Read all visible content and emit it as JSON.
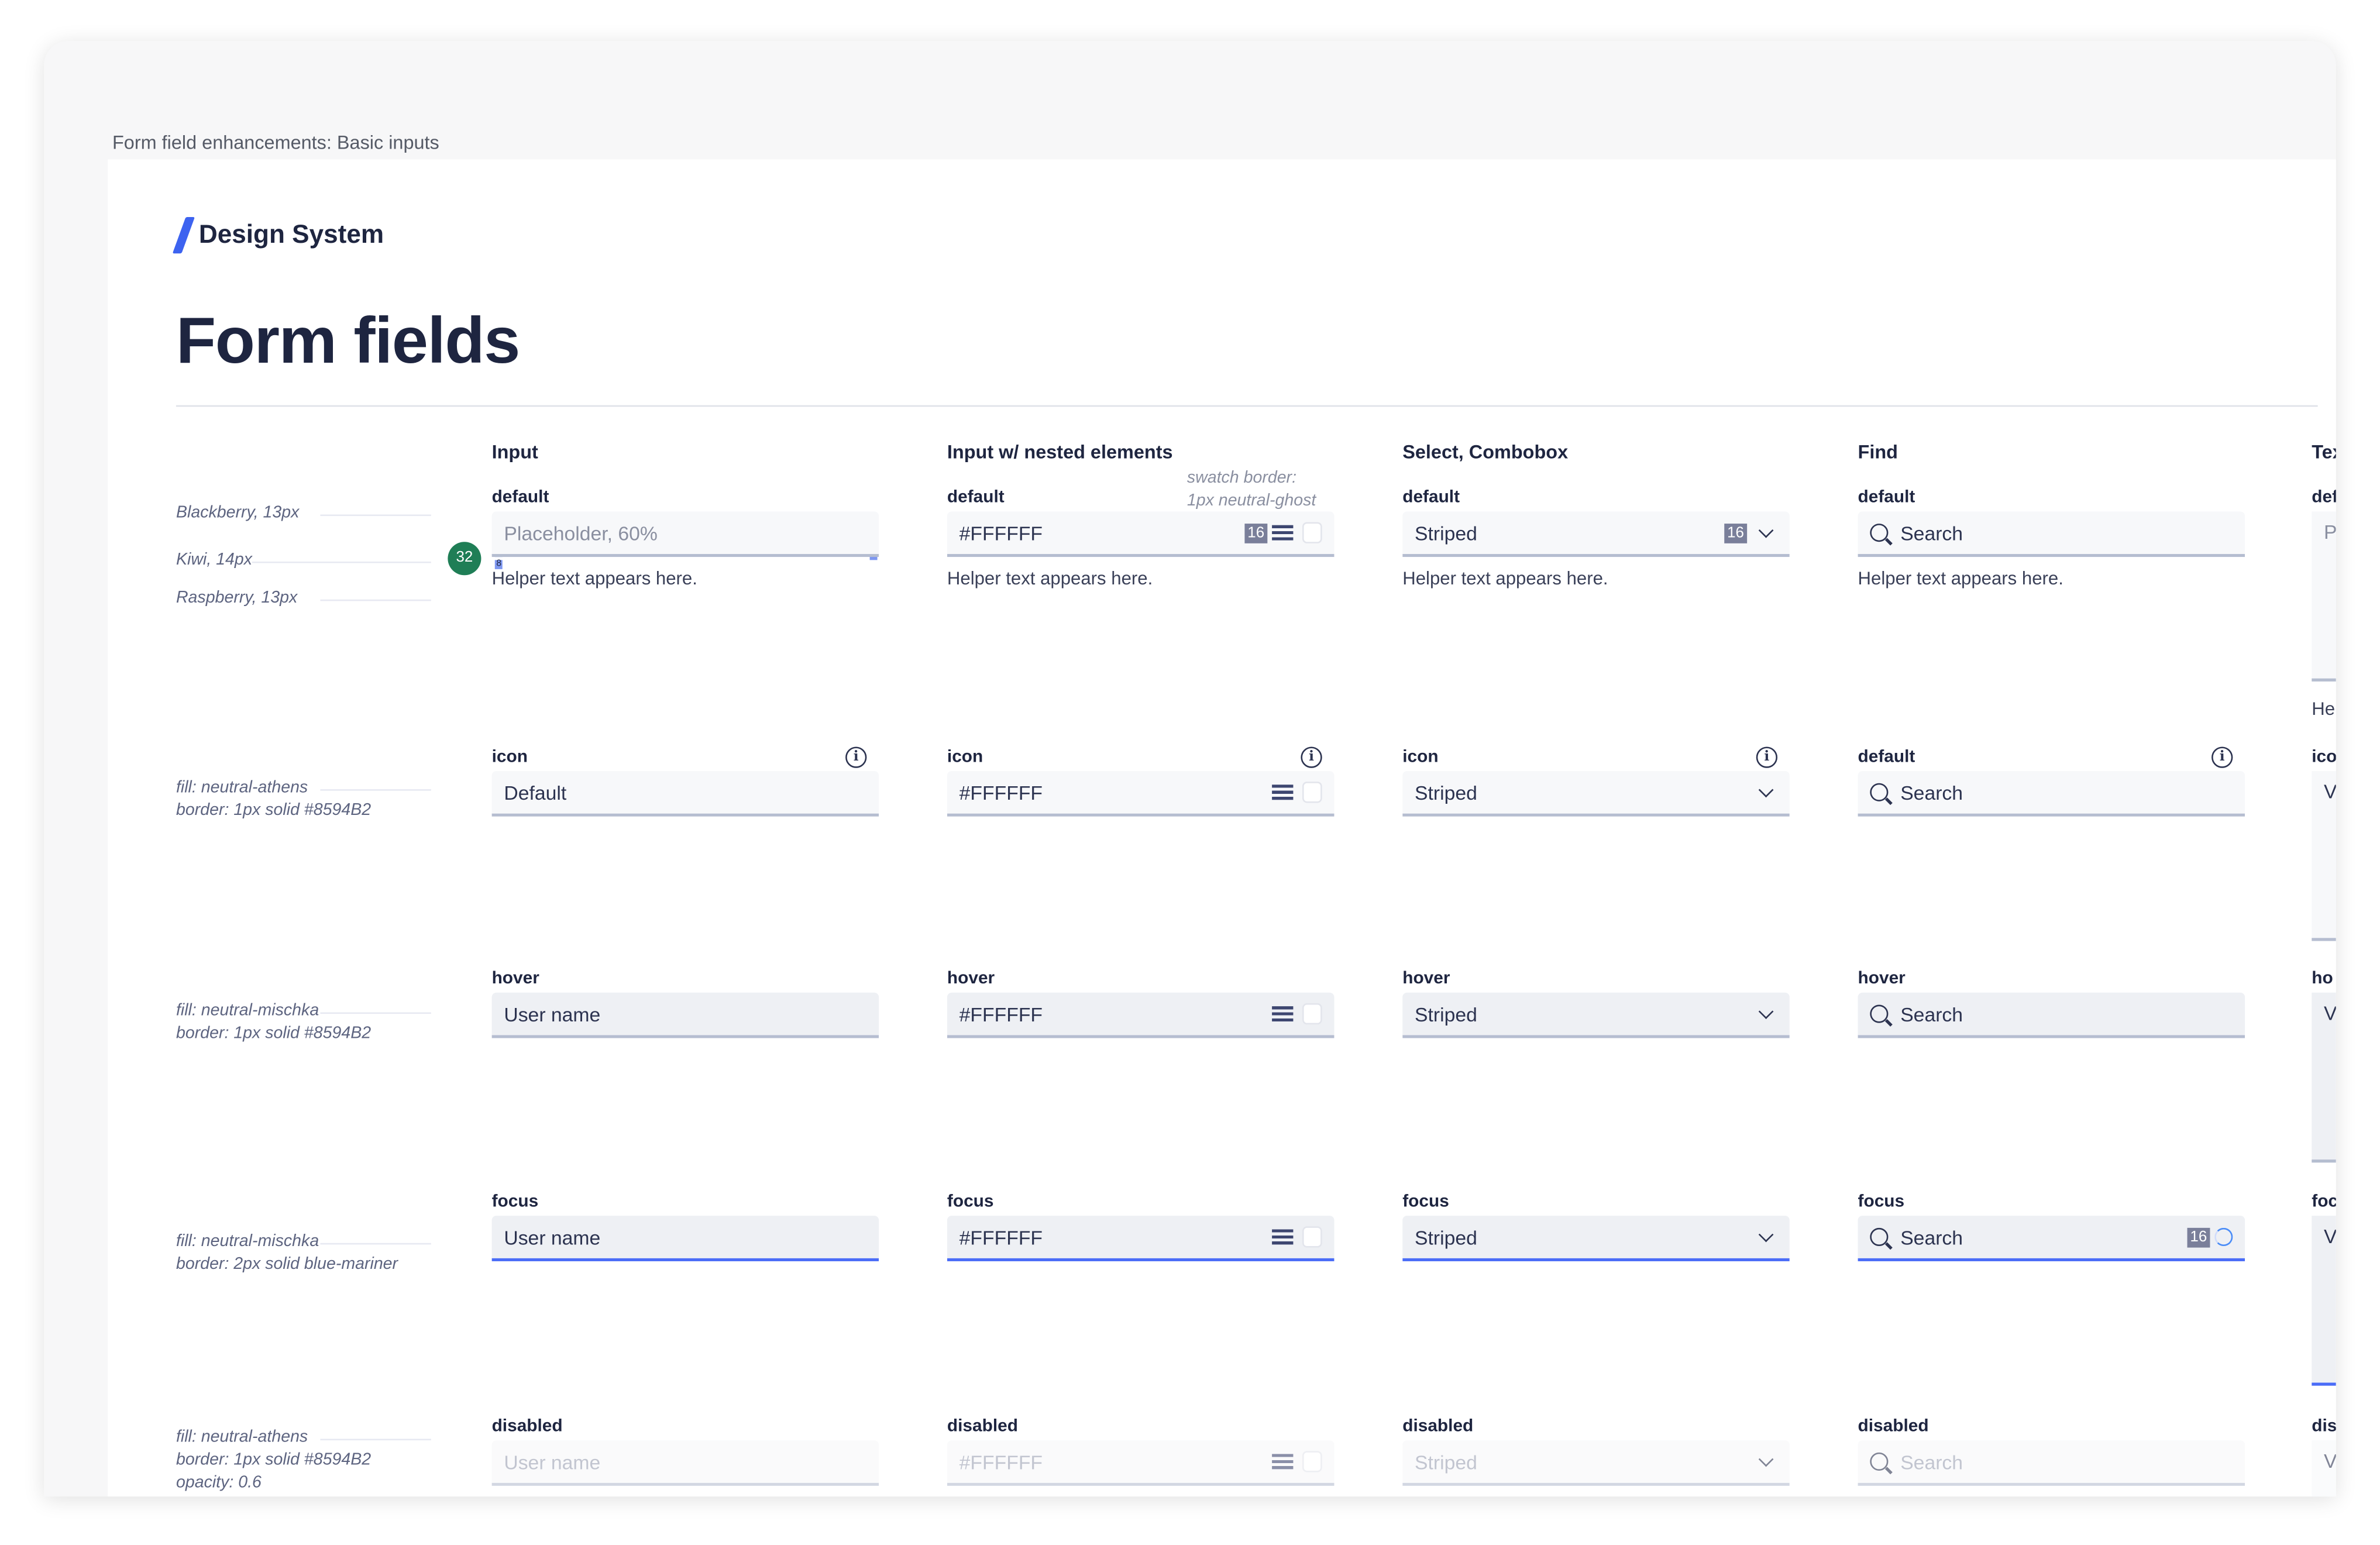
{
  "caption": "Form field enhancements: Basic inputs",
  "brand": "Design System",
  "page_title": "Form fields",
  "colors": {
    "accent": "#4A6CF7",
    "brand": "#3D63F0",
    "border": "#8594B2",
    "fill_default": "#F7F8FA",
    "fill_hover": "#EEF0F4",
    "pill": "#1F7E56"
  },
  "annotations": {
    "typography": [
      "Blackberry, 13px",
      "Kiwi, 14px",
      "Raspberry, 13px"
    ],
    "height_pill": "32",
    "spacing_mark": "8",
    "rows": [
      [
        "fill: neutral-athens",
        "border: 1px solid #8594B2"
      ],
      [
        "fill: neutral-mischka",
        "border: 1px solid #8594B2"
      ],
      [
        "fill: neutral-mischka",
        "border: 2px solid blue-mariner"
      ],
      [
        "fill: neutral-athens",
        "border: 1px solid #8594B2",
        "opacity: 0.6"
      ]
    ],
    "swatch_note": [
      "swatch border:",
      "1px neutral-ghost"
    ]
  },
  "columns": [
    {
      "title": "Input",
      "type": "input",
      "helper": "Helper text appears here.",
      "rows": [
        {
          "label": "default",
          "value": "Placeholder, 60%",
          "placeholder": true
        },
        {
          "label": "icon",
          "value": "Default",
          "info": true
        },
        {
          "label": "hover",
          "value": "User name"
        },
        {
          "label": "focus",
          "value": "User name"
        },
        {
          "label": "disabled",
          "value": "User name"
        }
      ]
    },
    {
      "title": "Input w/ nested elements",
      "type": "nested",
      "helper": "Helper text appears here.",
      "rows": [
        {
          "label": "default",
          "value": "#FFFFFF",
          "badge": "16"
        },
        {
          "label": "icon",
          "value": "#FFFFFF",
          "info": true
        },
        {
          "label": "hover",
          "value": "#FFFFFF"
        },
        {
          "label": "focus",
          "value": "#FFFFFF"
        },
        {
          "label": "disabled",
          "value": "#FFFFFF"
        }
      ]
    },
    {
      "title": "Select, Combobox",
      "type": "select",
      "helper": "Helper text appears here.",
      "rows": [
        {
          "label": "default",
          "value": "Striped",
          "badge": "16"
        },
        {
          "label": "icon",
          "value": "Striped",
          "info": true
        },
        {
          "label": "hover",
          "value": "Striped"
        },
        {
          "label": "focus",
          "value": "Striped"
        },
        {
          "label": "disabled",
          "value": "Striped"
        }
      ]
    },
    {
      "title": "Find",
      "type": "find",
      "helper": "Helper text appears here.",
      "rows": [
        {
          "label": "default",
          "value": "Search"
        },
        {
          "label": "default",
          "value": "Search",
          "info": true
        },
        {
          "label": "hover",
          "value": "Search"
        },
        {
          "label": "focus",
          "value": "Search",
          "badge": "16",
          "spinner": true
        },
        {
          "label": "disabled",
          "value": "Search"
        }
      ]
    }
  ],
  "textarea_column": {
    "title": "Tex",
    "helper": "He",
    "rows": [
      {
        "label": "def",
        "value": "P"
      },
      {
        "label": "ico",
        "value": "V"
      },
      {
        "label": "ho",
        "value": "V"
      },
      {
        "label": "foc",
        "value": "V"
      },
      {
        "label": "dis",
        "value": "V"
      }
    ]
  }
}
